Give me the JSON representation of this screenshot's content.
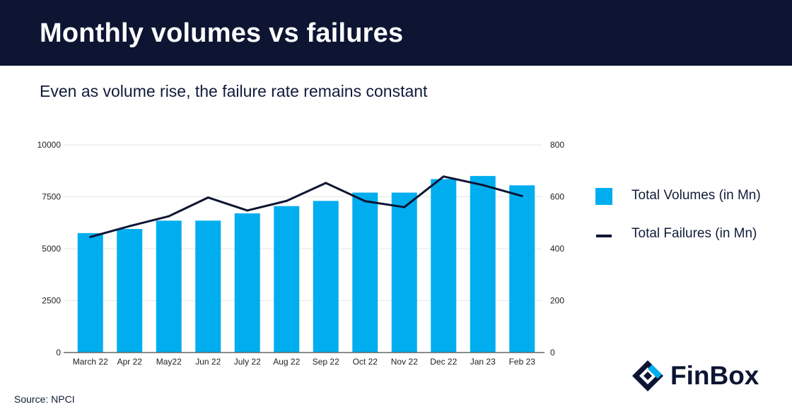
{
  "header": {
    "title": "Monthly volumes vs failures"
  },
  "subtitle": "Even as volume rise, the failure rate remains constant",
  "source": "Source: NPCI",
  "brand": {
    "name": "FinBox",
    "logo_icon": "finbox-logo-icon"
  },
  "colors": {
    "bars": "#00aeef",
    "line": "#0d1533",
    "header_bg": "#0d1533"
  },
  "chart_data": {
    "type": "bar",
    "categories": [
      "March 22",
      "Apr 22",
      "May22",
      "Jun 22",
      "July 22",
      "Aug 22",
      "Sep 22",
      "Oct 22",
      "Nov 22",
      "Dec 22",
      "Jan 23",
      "Feb 23"
    ],
    "series": [
      {
        "name": "Total Volumes (in Mn)",
        "type": "bar",
        "axis": "left",
        "values": [
          5750,
          5950,
          6350,
          6350,
          6700,
          7050,
          7300,
          7700,
          7700,
          8350,
          8500,
          8050
        ]
      },
      {
        "name": "Total Failures (in Mn)",
        "type": "line",
        "axis": "right",
        "values": [
          445,
          487,
          525,
          597,
          547,
          584,
          653,
          583,
          560,
          678,
          645,
          603
        ]
      }
    ],
    "y_left": {
      "min": 0,
      "max": 10000,
      "ticks": [
        "0",
        "2500",
        "5000",
        "7500",
        "10000"
      ]
    },
    "y_right": {
      "min": 0,
      "max": 800,
      "ticks": [
        "0",
        "200",
        "400",
        "600",
        "800"
      ]
    },
    "grid": true,
    "legend": "right"
  }
}
